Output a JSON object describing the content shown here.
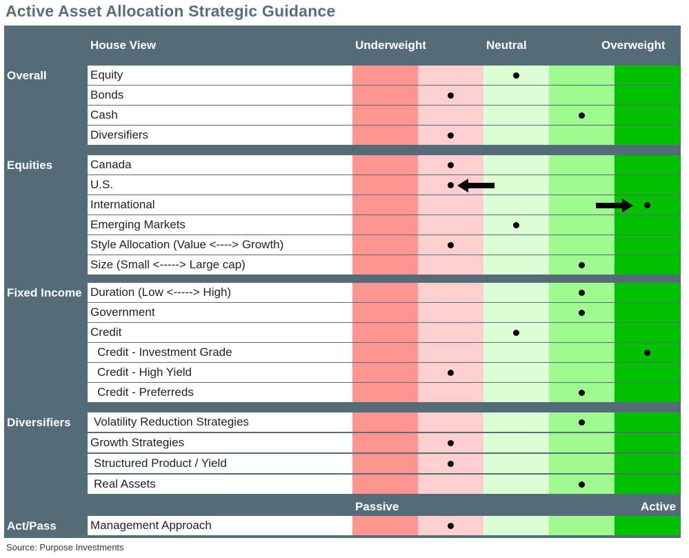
{
  "title": "Active Asset Allocation Strategic Guidance",
  "header": {
    "house_view": "House View",
    "underweight": "Underweight",
    "neutral": "Neutral",
    "overweight": "Overweight"
  },
  "sections": [
    {
      "name": "Overall",
      "rows": [
        {
          "label": "Equity",
          "level": 3
        },
        {
          "label": "Bonds",
          "level": 2
        },
        {
          "label": "Cash",
          "level": 4
        },
        {
          "label": "Diversifiers",
          "level": 2
        }
      ]
    },
    {
      "name": "Equities",
      "rows": [
        {
          "label": "Canada",
          "level": 2
        },
        {
          "label": "U.S.",
          "level": 2,
          "arrow": "left-icon"
        },
        {
          "label": "International",
          "level": 5,
          "arrow": "right-icon"
        },
        {
          "label": "Emerging Markets",
          "level": 3
        },
        {
          "label": "Style Allocation (Value <----> Growth)",
          "level": 2
        },
        {
          "label": "Size (Small <----->  Large cap)",
          "level": 4
        }
      ]
    },
    {
      "name": "Fixed Income",
      "rows": [
        {
          "label": "Duration (Low <-----> High)",
          "level": 4
        },
        {
          "label": "Government",
          "level": 4
        },
        {
          "label": "Credit",
          "level": 3
        },
        {
          "label": "Credit - Investment Grade",
          "level": 5
        },
        {
          "label": "Credit - High Yield",
          "level": 2
        },
        {
          "label": "Credit - Preferreds",
          "level": 4
        }
      ]
    },
    {
      "name": "Diversifiers",
      "rows": [
        {
          "label": "Volatility Reduction Strategies",
          "level": 4
        },
        {
          "label": "Growth Strategies",
          "level": 2
        },
        {
          "label": "Structured Product / Yield",
          "level": 2
        },
        {
          "label": "Real Assets",
          "level": 4
        }
      ]
    }
  ],
  "subheader": {
    "passive": "Passive",
    "active": "Active"
  },
  "act_pass": {
    "name": "Act/Pass",
    "label": "Management Approach",
    "level": 2
  },
  "colors": [
    "#ff9490",
    "#ffcfcf",
    "#dcffd6",
    "#9ffa90",
    "#00c000"
  ],
  "source": "Source: Purpose Investments"
}
